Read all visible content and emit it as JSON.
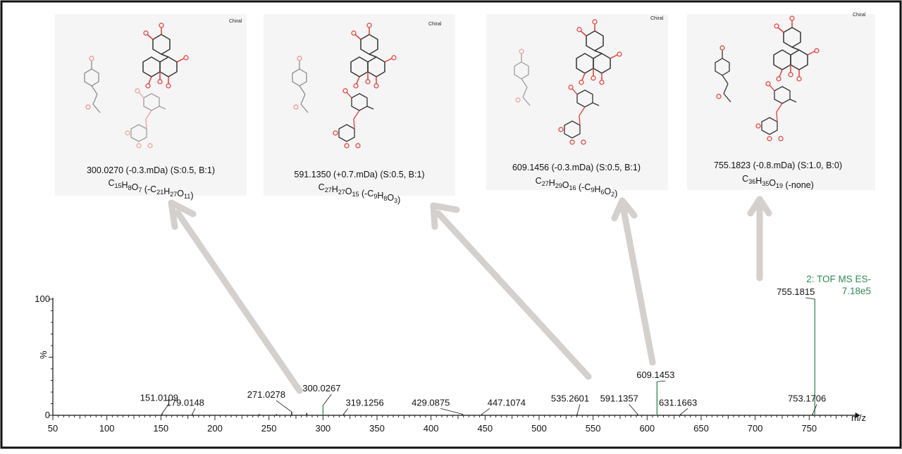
{
  "structures": [
    {
      "mass_line": "300.0270 (-0.3.mDa) (S:0.5, B:1)",
      "formula": "C15H8O7",
      "loss": "-C21H27O11",
      "chiral": "Chiral"
    },
    {
      "mass_line": "591.1350 (+0.7.mDa) (S:0.5, B:1)",
      "formula": "C27H27O15",
      "loss": "-C9H8O3",
      "chiral": "Chiral"
    },
    {
      "mass_line": "609.1456 (-0.3.mDa) (S:0.5, B:1)",
      "formula": "C27H29O16",
      "loss": "-C9H6O2",
      "chiral": "Chiral"
    },
    {
      "mass_line": "755.1823 (-0.8.mDa) (S:1.0, B:0)",
      "formula": "C36H35O19",
      "loss": "-none",
      "chiral": "Chiral"
    }
  ],
  "colors": {
    "peak": "#000000",
    "precursor_peak": "#2e8b57",
    "header_text": "#2e8b57",
    "arrow": "#d3d0cd",
    "panel_bg": "#f5f5f5",
    "oxygen": "#e53935"
  },
  "chart_data": {
    "type": "bar",
    "title": "2: TOF MS ES-",
    "intensity_label": "7.18e5",
    "xlabel": "m/z",
    "ylabel": "%",
    "xlim": [
      50,
      790
    ],
    "ylim": [
      0,
      100
    ],
    "xticks": [
      50,
      100,
      150,
      200,
      250,
      300,
      350,
      400,
      450,
      500,
      550,
      600,
      650,
      700,
      750
    ],
    "yticks": [
      0,
      100
    ],
    "peaks": [
      {
        "mz": 151.0109,
        "intensity": 1.5,
        "label": "151.0109"
      },
      {
        "mz": 179.0148,
        "intensity": 1.0,
        "label": "179.0148"
      },
      {
        "mz": 241.0,
        "intensity": 1.0,
        "label": ""
      },
      {
        "mz": 257.0,
        "intensity": 1.0,
        "label": ""
      },
      {
        "mz": 271.0278,
        "intensity": 3.0,
        "label": "271.0278"
      },
      {
        "mz": 285.0,
        "intensity": 2.0,
        "label": ""
      },
      {
        "mz": 300.0267,
        "intensity": 8.5,
        "label": "300.0267"
      },
      {
        "mz": 319.1256,
        "intensity": 1.0,
        "label": "319.1256"
      },
      {
        "mz": 429.0875,
        "intensity": 1.0,
        "label": "429.0875"
      },
      {
        "mz": 447.1074,
        "intensity": 1.0,
        "label": "447.1074"
      },
      {
        "mz": 535.2601,
        "intensity": 1.0,
        "label": "535.2601"
      },
      {
        "mz": 591.1357,
        "intensity": 1.0,
        "label": "591.1357"
      },
      {
        "mz": 609.1453,
        "intensity": 29.0,
        "label": "609.1453"
      },
      {
        "mz": 631.1663,
        "intensity": 1.0,
        "label": "631.1663"
      },
      {
        "mz": 753.1706,
        "intensity": 1.0,
        "label": "753.1706"
      },
      {
        "mz": 755.1815,
        "intensity": 100.0,
        "label": "755.1815"
      }
    ]
  }
}
